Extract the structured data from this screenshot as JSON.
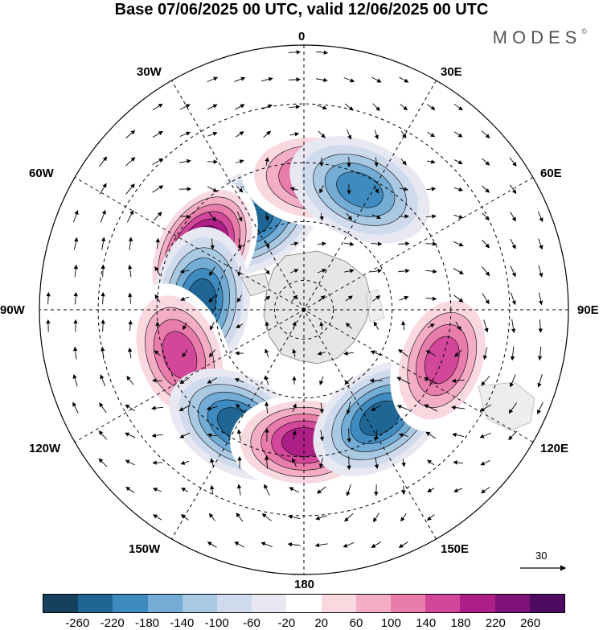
{
  "header": {
    "title": "Base 07/06/2025 00 UTC, valid 12/06/2025 00 UTC",
    "brand": "MODES",
    "brand_mark": "©"
  },
  "map": {
    "projection": "south polar stereographic",
    "longitude_labels": [
      "0",
      "30E",
      "60E",
      "90E",
      "120E",
      "150E",
      "180",
      "150W",
      "120W",
      "90W",
      "60W",
      "30W"
    ],
    "vector_scale_label": "30",
    "anomaly_centers": [
      {
        "sign": "negative",
        "lon": -30,
        "lat": -55,
        "value": -180
      },
      {
        "sign": "positive",
        "lon": -60,
        "lat": -50,
        "value": 260
      },
      {
        "sign": "negative",
        "lon": -85,
        "lat": -55,
        "value": -200
      },
      {
        "sign": "positive",
        "lon": 5,
        "lat": -45,
        "value": 140
      },
      {
        "sign": "negative",
        "lon": 25,
        "lat": -45,
        "value": -140
      },
      {
        "sign": "positive",
        "lon": -110,
        "lat": -45,
        "value": 140
      },
      {
        "sign": "negative",
        "lon": -150,
        "lat": -45,
        "value": -180
      },
      {
        "sign": "positive",
        "lon": 180,
        "lat": -45,
        "value": 180
      },
      {
        "sign": "negative",
        "lon": 145,
        "lat": -45,
        "value": -200
      },
      {
        "sign": "positive",
        "lon": 110,
        "lat": -40,
        "value": 140
      }
    ]
  },
  "colorbar": {
    "ticks": [
      "-260",
      "-220",
      "-180",
      "-140",
      "-100",
      "-60",
      "-20",
      "20",
      "60",
      "100",
      "140",
      "180",
      "220",
      "260"
    ],
    "colors": [
      "#15405e",
      "#1f6694",
      "#3f8bbf",
      "#73acd4",
      "#a9c8e2",
      "#cfdbed",
      "#e8e8f3",
      "#ffffff",
      "#f9d8e0",
      "#f3aec6",
      "#e87cab",
      "#d3479a",
      "#ad1f86",
      "#7e1279",
      "#4f0a62"
    ]
  }
}
